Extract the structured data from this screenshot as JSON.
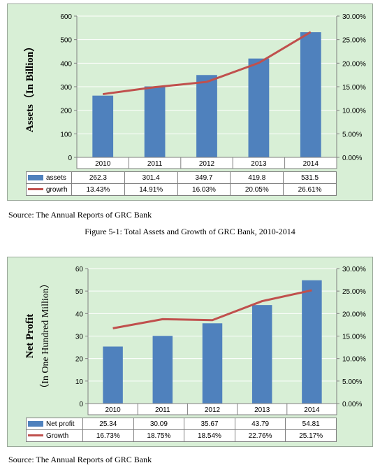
{
  "colors": {
    "bar": "#4f81bd",
    "line": "#c0504d",
    "plot_bg": "#d8efd6",
    "grid": "#ffffff"
  },
  "chart_data": [
    {
      "type": "bar",
      "categories": [
        "2010",
        "2011",
        "2012",
        "2013",
        "2014"
      ],
      "series": [
        {
          "name": "assets",
          "type": "bar",
          "axis": "left",
          "values": [
            262.3,
            301.4,
            349.7,
            419.8,
            531.5
          ],
          "labels": [
            "262.3",
            "301.4",
            "349.7",
            "419.8",
            "531.5"
          ]
        },
        {
          "name": "growrh",
          "type": "line",
          "axis": "right",
          "values": [
            13.43,
            14.91,
            16.03,
            20.05,
            26.61
          ],
          "labels": [
            "13.43%",
            "14.91%",
            "16.03%",
            "20.05%",
            "26.61%"
          ]
        }
      ],
      "ylabel": "Assets（In Billion）",
      "ylim": [
        0,
        600
      ],
      "y_ticks": [
        "600",
        "500",
        "400",
        "300",
        "200",
        "100",
        "0"
      ],
      "y2lim": [
        0,
        30
      ],
      "y2_ticks": [
        "30.00%",
        "25.00%",
        "20.00%",
        "15.00%",
        "10.00%",
        "5.00%",
        "0.00%"
      ],
      "grid": true,
      "legend": "data table"
    },
    {
      "type": "bar",
      "categories": [
        "2010",
        "2011",
        "2012",
        "2013",
        "2014"
      ],
      "series": [
        {
          "name": "Net profit",
          "type": "bar",
          "axis": "left",
          "values": [
            25.34,
            30.09,
            35.67,
            43.79,
            54.81
          ],
          "labels": [
            "25.34",
            "30.09",
            "35.67",
            "43.79",
            "54.81"
          ]
        },
        {
          "name": "Growth",
          "type": "line",
          "axis": "right",
          "values": [
            16.73,
            18.75,
            18.54,
            22.76,
            25.17
          ],
          "labels": [
            "16.73%",
            "18.75%",
            "18.54%",
            "22.76%",
            "25.17%"
          ]
        }
      ],
      "ylabel": "Net Profit",
      "ylabel2": "（In One Hundred Million）",
      "ylim": [
        0,
        60
      ],
      "y_ticks": [
        "60",
        "50",
        "40",
        "30",
        "20",
        "10",
        "0"
      ],
      "y2lim": [
        0,
        30
      ],
      "y2_ticks": [
        "30.00%",
        "25.00%",
        "20.00%",
        "15.00%",
        "10.00%",
        "5.00%",
        "0.00%"
      ],
      "grid": true,
      "legend": "data table"
    }
  ],
  "captions": {
    "source1": "Source:  The Annual Reports of GRC Bank",
    "figure1": "Figure 5-1: Total Assets and Growth of GRC Bank, 2010-2014",
    "source2": "Source:  The Annual Reports of GRC Bank"
  }
}
